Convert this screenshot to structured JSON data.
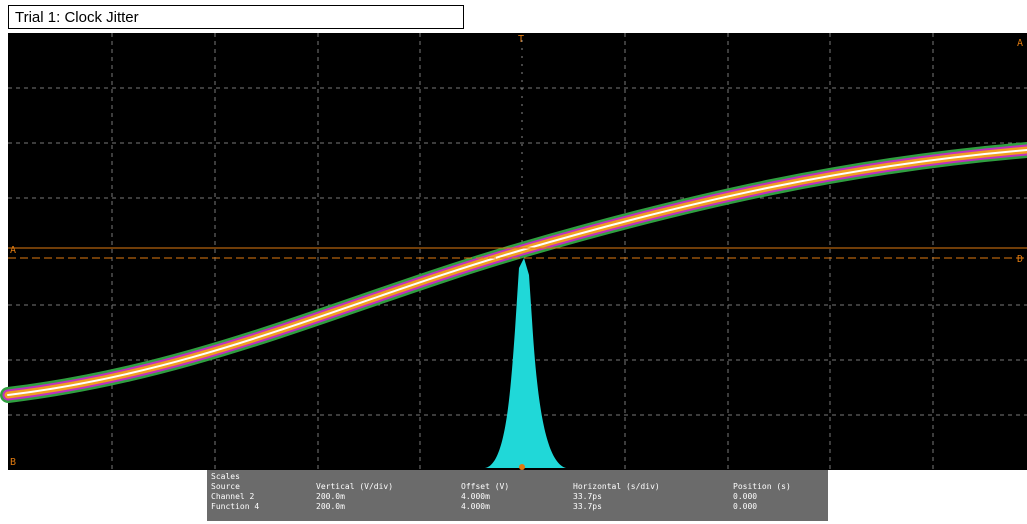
{
  "header": {
    "title": "Trial 1: Clock Jitter"
  },
  "markers": {
    "trigger": "T",
    "cursor_a": "A",
    "cursor_b": "B",
    "cursor_d": "D"
  },
  "scales": {
    "title": "Scales",
    "columns": [
      "Source",
      "Vertical (V/div)",
      "Offset (V)",
      "Horizontal (s/div)",
      "Position (s)"
    ],
    "rows": [
      [
        "Channel 2",
        "200.0m",
        "4.000m",
        "33.7ps",
        "0.000"
      ],
      [
        "Function 4",
        "200.0m",
        "4.000m",
        "33.7ps",
        "0.000"
      ]
    ]
  }
}
